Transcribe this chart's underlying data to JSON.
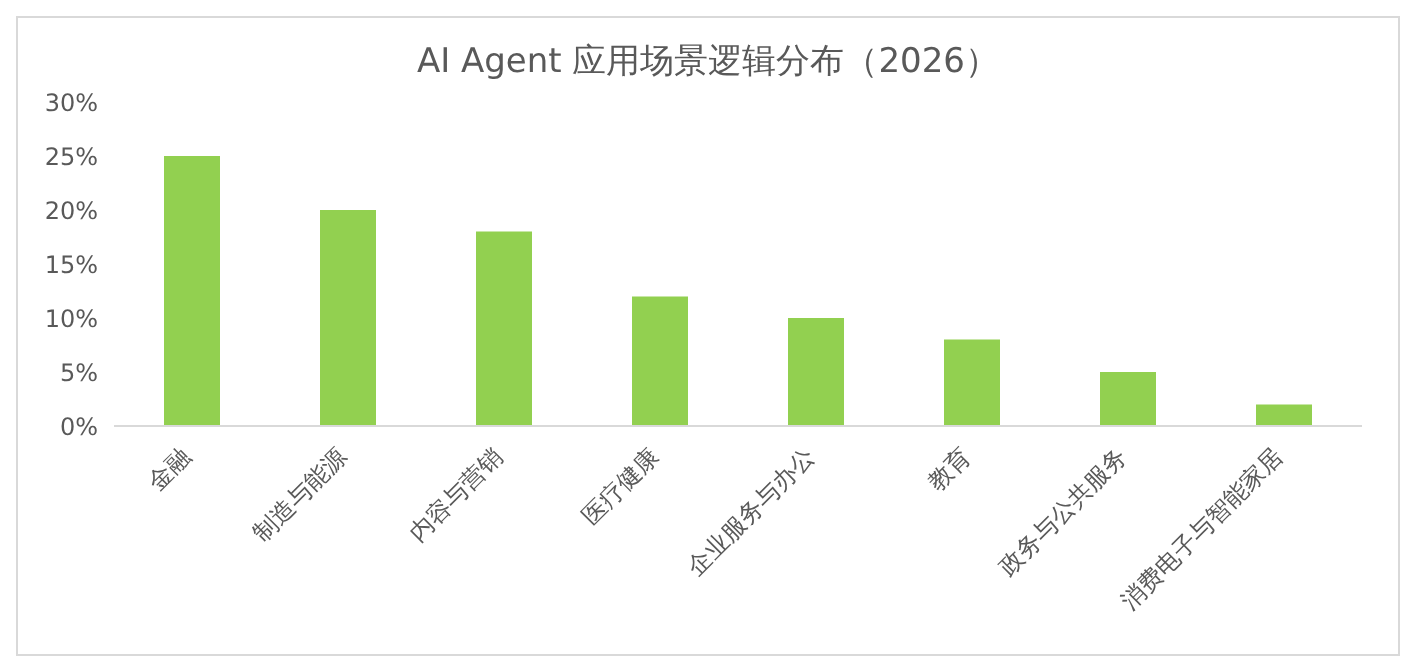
{
  "chart_data": {
    "type": "bar",
    "title": "AI Agent 应用场景逻辑分布（2026）",
    "categories": [
      "金融",
      "制造与能源",
      "内容与营销",
      "医疗健康",
      "企业服务与办公",
      "教育",
      "政务与公共服务",
      "消费电子与智能家居"
    ],
    "values": [
      25,
      20,
      18,
      12,
      10,
      8,
      5,
      2
    ],
    "color": "#92d050",
    "ylim": [
      0,
      30
    ],
    "yticks": [
      {
        "value": 0,
        "label": "0%"
      },
      {
        "value": 5,
        "label": "5%"
      },
      {
        "value": 10,
        "label": "10%"
      },
      {
        "value": 15,
        "label": "15%"
      },
      {
        "value": 20,
        "label": "20%"
      },
      {
        "value": 25,
        "label": "25%"
      },
      {
        "value": 30,
        "label": "30%"
      }
    ],
    "grid": false
  }
}
